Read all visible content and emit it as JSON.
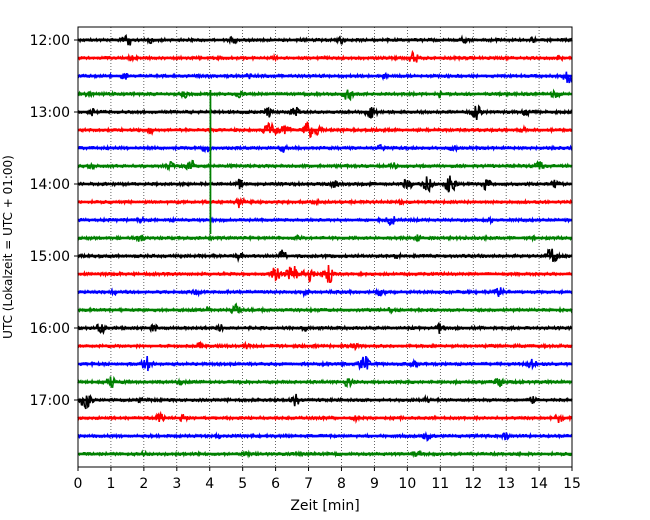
{
  "chart_data": {
    "type": "line",
    "title": "",
    "xlabel": "Zeit  [min]",
    "ylabel": "UTC (Lokalzeit = UTC + 01:00)",
    "xlim": [
      0,
      15
    ],
    "x_ticks": [
      0,
      1,
      2,
      3,
      4,
      5,
      6,
      7,
      8,
      9,
      10,
      11,
      12,
      13,
      14,
      15
    ],
    "x_tick_labels": [
      "0",
      "1",
      "2",
      "3",
      "4",
      "5",
      "6",
      "7",
      "8",
      "9",
      "10",
      "11",
      "12",
      "13",
      "14",
      "15"
    ],
    "y_tick_labels": [
      "12:00",
      "13:00",
      "14:00",
      "15:00",
      "16:00",
      "17:00"
    ],
    "grid": "vertical dotted",
    "row_interval_minutes": 15,
    "first_row": "12:00",
    "color_cycle": [
      "#000000",
      "#ff0000",
      "#0000ff",
      "#008000"
    ],
    "rows": [
      {
        "start": "12:00",
        "color": "#000000",
        "events": [
          [
            1.5,
            0.7
          ],
          [
            2.2,
            0.35
          ],
          [
            4.7,
            0.35
          ],
          [
            8.0,
            0.4
          ],
          [
            11.7,
            0.35
          ],
          [
            13.8,
            0.3
          ]
        ]
      },
      {
        "start": "12:15",
        "color": "#ff0000",
        "events": [
          [
            1.6,
            0.3
          ],
          [
            6.0,
            0.3
          ],
          [
            10.2,
            0.7
          ],
          [
            14.6,
            0.35
          ]
        ]
      },
      {
        "start": "12:30",
        "color": "#0000ff",
        "events": [
          [
            1.4,
            0.4
          ],
          [
            5.2,
            0.3
          ],
          [
            9.3,
            0.35
          ],
          [
            14.9,
            0.8
          ]
        ]
      },
      {
        "start": "12:45",
        "color": "#008000",
        "events": [
          [
            0.3,
            0.3
          ],
          [
            3.2,
            0.45
          ],
          [
            4.9,
            0.35
          ],
          [
            8.2,
            0.7
          ],
          [
            11.0,
            0.35
          ],
          [
            14.5,
            0.5
          ]
        ]
      },
      {
        "start": "13:00",
        "color": "#000000",
        "events": [
          [
            0.4,
            0.4
          ],
          [
            5.8,
            0.5
          ],
          [
            6.6,
            0.6
          ],
          [
            8.9,
            0.8
          ],
          [
            12.1,
            0.8
          ],
          [
            13.6,
            0.4
          ]
        ]
      },
      {
        "start": "13:15",
        "color": "#ff0000",
        "events": [
          [
            2.2,
            0.4
          ],
          [
            5.8,
            0.8
          ],
          [
            6.0,
            0.6
          ],
          [
            6.3,
            0.7
          ],
          [
            7.0,
            0.9
          ],
          [
            7.3,
            0.5
          ],
          [
            13.5,
            0.3
          ]
        ]
      },
      {
        "start": "13:30",
        "color": "#0000ff",
        "events": [
          [
            3.9,
            0.5
          ],
          [
            6.2,
            0.5
          ],
          [
            9.2,
            0.35
          ],
          [
            11.4,
            0.35
          ]
        ]
      },
      {
        "start": "13:45",
        "color": "#008000",
        "events": [
          [
            0.4,
            0.4
          ],
          [
            2.8,
            0.4
          ],
          [
            3.4,
            0.7
          ],
          [
            9.6,
            0.35
          ],
          [
            14.0,
            0.5
          ]
        ]
      },
      {
        "start": "14:00",
        "color": "#000000",
        "events": [
          [
            4.9,
            0.5
          ],
          [
            7.8,
            0.4
          ],
          [
            10.0,
            0.6
          ],
          [
            10.6,
            0.8
          ],
          [
            11.3,
            0.9
          ],
          [
            12.4,
            0.6
          ],
          [
            14.5,
            0.5
          ]
        ]
      },
      {
        "start": "14:15",
        "color": "#ff0000",
        "events": [
          [
            4.9,
            0.6
          ],
          [
            7.2,
            0.3
          ],
          [
            9.8,
            0.3
          ]
        ]
      },
      {
        "start": "14:30",
        "color": "#0000ff",
        "events": [
          [
            1.9,
            0.3
          ],
          [
            9.5,
            0.6
          ],
          [
            12.5,
            0.3
          ]
        ]
      },
      {
        "start": "14:45",
        "color": "#008000",
        "events": [
          [
            1.9,
            0.4
          ],
          [
            6.7,
            0.3
          ],
          [
            10.3,
            0.35
          ],
          [
            13.9,
            0.3
          ]
        ]
      },
      {
        "start": "15:00",
        "color": "#000000",
        "events": [
          [
            4.9,
            0.4
          ],
          [
            6.2,
            0.6
          ],
          [
            9.7,
            0.3
          ],
          [
            14.4,
            0.9
          ]
        ]
      },
      {
        "start": "15:15",
        "color": "#ff0000",
        "events": [
          [
            6.0,
            0.7
          ],
          [
            6.5,
            0.9
          ],
          [
            7.0,
            0.8
          ],
          [
            7.6,
            0.9
          ]
        ]
      },
      {
        "start": "15:30",
        "color": "#0000ff",
        "events": [
          [
            1.1,
            0.3
          ],
          [
            3.6,
            0.4
          ],
          [
            6.9,
            0.4
          ],
          [
            9.2,
            0.5
          ],
          [
            12.8,
            0.5
          ]
        ]
      },
      {
        "start": "15:45",
        "color": "#008000",
        "events": [
          [
            3.9,
            0.35
          ],
          [
            4.8,
            0.6
          ],
          [
            9.5,
            0.3
          ]
        ]
      },
      {
        "start": "16:00",
        "color": "#000000",
        "events": [
          [
            0.7,
            0.6
          ],
          [
            2.3,
            0.4
          ],
          [
            4.3,
            0.4
          ],
          [
            6.9,
            0.3
          ],
          [
            11.0,
            0.6
          ]
        ]
      },
      {
        "start": "16:15",
        "color": "#ff0000",
        "events": [
          [
            3.7,
            0.3
          ],
          [
            5.1,
            0.3
          ],
          [
            8.4,
            0.35
          ]
        ]
      },
      {
        "start": "16:30",
        "color": "#0000ff",
        "events": [
          [
            2.1,
            0.8
          ],
          [
            8.7,
            0.9
          ],
          [
            10.2,
            0.4
          ],
          [
            13.8,
            0.6
          ]
        ]
      },
      {
        "start": "16:45",
        "color": "#008000",
        "events": [
          [
            1.0,
            0.6
          ],
          [
            3.1,
            0.4
          ],
          [
            8.2,
            0.5
          ],
          [
            12.8,
            0.5
          ]
        ]
      },
      {
        "start": "17:00",
        "color": "#000000",
        "events": [
          [
            0.25,
            0.9
          ],
          [
            1.9,
            0.4
          ],
          [
            6.6,
            0.6
          ],
          [
            10.6,
            0.35
          ],
          [
            13.8,
            0.4
          ]
        ]
      },
      {
        "start": "17:15",
        "color": "#ff0000",
        "events": [
          [
            2.5,
            0.5
          ],
          [
            3.2,
            0.4
          ],
          [
            8.4,
            0.35
          ],
          [
            14.6,
            0.5
          ]
        ]
      },
      {
        "start": "17:30",
        "color": "#0000ff",
        "events": [
          [
            4.3,
            0.35
          ],
          [
            10.6,
            0.5
          ],
          [
            13.0,
            0.4
          ]
        ]
      },
      {
        "start": "17:45",
        "color": "#008000",
        "events": [
          [
            2.0,
            0.3
          ],
          [
            5.1,
            0.35
          ],
          [
            10.3,
            0.35
          ]
        ]
      }
    ],
    "spike": {
      "minute": 3.9,
      "color": "#008000",
      "from_row": "12:45",
      "to_row": "14:45"
    }
  }
}
